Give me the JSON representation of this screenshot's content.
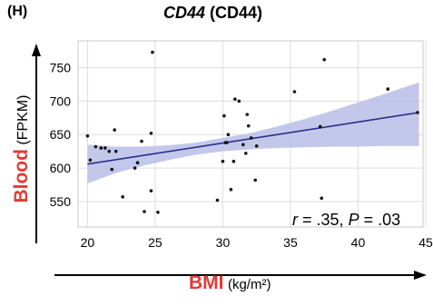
{
  "panel_label": "(H)",
  "title_gene": "CD44",
  "title_protein": "(CD44)",
  "ylabel_main": "Blood",
  "ylabel_unit": "(FPKM)",
  "xlabel_main": "BMI",
  "xlabel_unit": "(kg/m²)",
  "stats": {
    "r_symbol": "r",
    "r_text": " = .35,",
    "p_symbol": "P",
    "p_text": " = .03"
  },
  "colors": {
    "line": "#2b2e8c",
    "band": "#b9bde6",
    "point": "#111111",
    "accent_text": "#e53935"
  },
  "chart_data": {
    "type": "scatter",
    "xlim": [
      19.3,
      44.8
    ],
    "ylim": [
      512,
      790
    ],
    "xticks": [
      20,
      25,
      30,
      35,
      40,
      45
    ],
    "yticks": [
      550,
      600,
      650,
      700,
      750
    ],
    "grid": true,
    "regression": {
      "x": [
        20,
        44.5
      ],
      "y": [
        606,
        683
      ]
    },
    "confidence_band": {
      "x": [
        20,
        22,
        24,
        26,
        28,
        30,
        32,
        34,
        36,
        38,
        40,
        42,
        44.5
      ],
      "lower": [
        577,
        592,
        603,
        612,
        620,
        625,
        628,
        630,
        631,
        632,
        632,
        633,
        633
      ],
      "upper": [
        635,
        632,
        632,
        634,
        638,
        645,
        652,
        662,
        673,
        685,
        698,
        711,
        728
      ]
    },
    "points": [
      [
        20,
        648
      ],
      [
        20.2,
        612
      ],
      [
        20.6,
        632
      ],
      [
        21,
        630
      ],
      [
        21.3,
        630
      ],
      [
        21.6,
        625
      ],
      [
        21.8,
        598
      ],
      [
        22,
        657
      ],
      [
        22.1,
        625
      ],
      [
        22.6,
        557
      ],
      [
        23.5,
        600
      ],
      [
        23.7,
        608
      ],
      [
        24,
        640
      ],
      [
        24.2,
        535
      ],
      [
        24.7,
        652
      ],
      [
        24.7,
        566
      ],
      [
        24.8,
        773
      ],
      [
        25.2,
        534
      ],
      [
        29.6,
        552
      ],
      [
        30,
        610
      ],
      [
        30.1,
        678
      ],
      [
        30.2,
        638
      ],
      [
        30.3,
        638
      ],
      [
        30.4,
        650
      ],
      [
        30.6,
        568
      ],
      [
        30.8,
        610
      ],
      [
        30.9,
        703
      ],
      [
        31.2,
        700
      ],
      [
        31.5,
        635
      ],
      [
        31.7,
        622
      ],
      [
        31.8,
        680
      ],
      [
        31.9,
        663
      ],
      [
        32.1,
        645
      ],
      [
        32.4,
        582
      ],
      [
        32.5,
        633
      ],
      [
        35.3,
        714
      ],
      [
        37.2,
        662
      ],
      [
        37.3,
        555
      ],
      [
        37.5,
        762
      ],
      [
        42.2,
        718
      ],
      [
        44.4,
        683
      ]
    ]
  }
}
